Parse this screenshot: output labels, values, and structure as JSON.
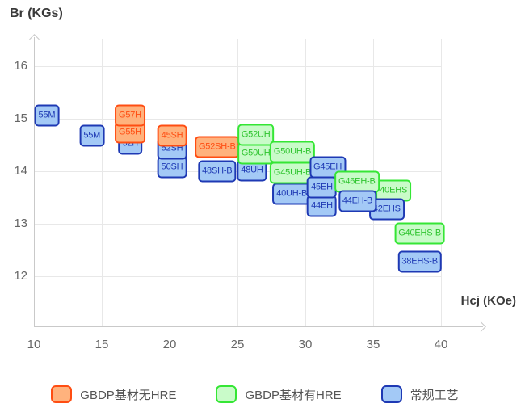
{
  "chart_data": {
    "type": "scatter",
    "title": "",
    "x_axis": {
      "label": "Hcj (KOe)",
      "ticks": [
        10,
        15,
        20,
        25,
        30,
        35,
        40
      ],
      "range": [
        10,
        43.2
      ]
    },
    "y_axis": {
      "label": "Br (KGs)",
      "ticks": [
        16,
        15,
        14,
        13,
        12
      ],
      "range": [
        11,
        16.5
      ]
    },
    "grid": true,
    "legend_position": "bottom",
    "legend": [
      {
        "key": "orange",
        "label": "GBDP基材无HRE",
        "fill": "#ffb27d",
        "border": "#ff4d12",
        "text": "#ff4d12"
      },
      {
        "key": "green",
        "label": "GBDP基材有HRE",
        "fill": "#c9fbc9",
        "border": "#35e635",
        "text": "#2fc42f"
      },
      {
        "key": "blue",
        "label": "常规工艺",
        "fill": "#a3c9f6",
        "border": "#1e39b4",
        "text": "#1e39b4"
      }
    ],
    "points": [
      {
        "label": "55M",
        "series": "blue",
        "hcj": 10.95,
        "br": 15.06
      },
      {
        "label": "55M",
        "series": "blue",
        "hcj": 14.27,
        "br": 14.67
      },
      {
        "label": "52H",
        "series": "blue",
        "hcj": 17.1,
        "br": 14.52
      },
      {
        "label": "G55H",
        "series": "orange",
        "hcj": 17.08,
        "br": 14.73
      },
      {
        "label": "G57H",
        "series": "orange",
        "hcj": 17.08,
        "br": 15.06
      },
      {
        "label": "50SH",
        "series": "blue",
        "hcj": 20.18,
        "br": 14.08
      },
      {
        "label": "52SH",
        "series": "blue",
        "hcj": 20.18,
        "br": 14.43
      },
      {
        "label": "45SH",
        "series": "orange",
        "hcj": 20.18,
        "br": 14.68
      },
      {
        "label": "48SH-B",
        "series": "blue",
        "hcj": 23.5,
        "br": 13.99
      },
      {
        "label": "G52SH-B",
        "series": "orange",
        "hcj": 23.5,
        "br": 14.45
      },
      {
        "label": "48UH",
        "series": "blue",
        "hcj": 26.07,
        "br": 14.01
      },
      {
        "label": "G50UH",
        "series": "green",
        "hcj": 26.35,
        "br": 14.34
      },
      {
        "label": "G52UH",
        "series": "green",
        "hcj": 26.35,
        "br": 14.69
      },
      {
        "label": "40UH-B",
        "series": "blue",
        "hcj": 29.0,
        "br": 13.57
      },
      {
        "label": "G45UH-B",
        "series": "green",
        "hcj": 29.05,
        "br": 13.97
      },
      {
        "label": "G50UH-B",
        "series": "green",
        "hcj": 29.05,
        "br": 14.36
      },
      {
        "label": "44EH",
        "series": "blue",
        "hcj": 31.22,
        "br": 13.34
      },
      {
        "label": "45EH",
        "series": "blue",
        "hcj": 31.22,
        "br": 13.69
      },
      {
        "label": "G45EH",
        "series": "blue",
        "hcj": 31.64,
        "br": 14.08
      },
      {
        "label": "40EHS",
        "series": "green",
        "hcj": 36.5,
        "br": 13.63
      },
      {
        "label": "G46EH-B",
        "series": "green",
        "hcj": 33.8,
        "br": 13.8
      },
      {
        "label": "42EHS",
        "series": "blue",
        "hcj": 36.0,
        "br": 13.28
      },
      {
        "label": "44EH-B",
        "series": "blue",
        "hcj": 33.84,
        "br": 13.42
      },
      {
        "label": "G40EHS-B",
        "series": "green",
        "hcj": 38.43,
        "br": 12.81
      },
      {
        "label": "38EHS-B",
        "series": "blue",
        "hcj": 38.43,
        "br": 12.27
      }
    ]
  }
}
